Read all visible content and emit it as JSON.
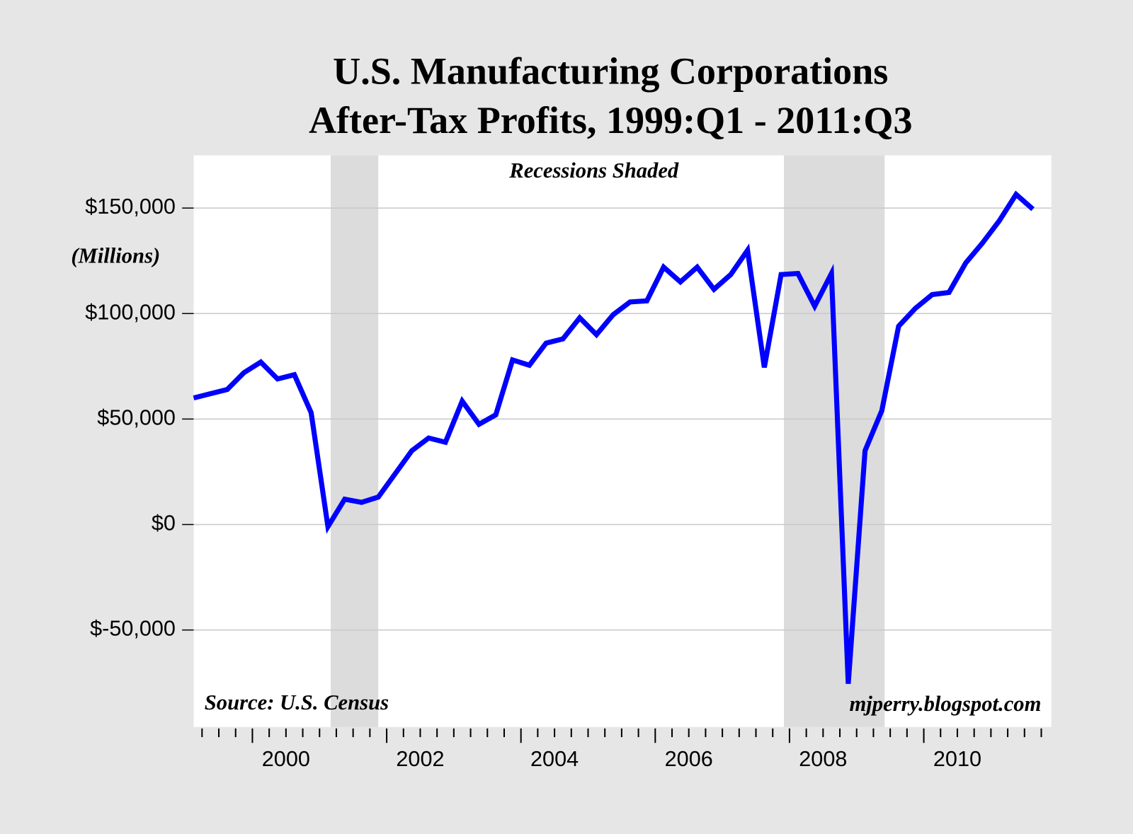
{
  "chart_data": {
    "type": "line",
    "title": [
      "U.S. Manufacturing Corporations",
      "After-Tax Profits, 1999:Q1 - 2011:Q3"
    ],
    "annotation": "Recessions Shaded",
    "ylabel": "(Millions)",
    "source": "Source: U.S. Census",
    "credit": "mjperry.blogspot.com",
    "x": [
      1999.125,
      1999.375,
      1999.625,
      1999.875,
      2000.125,
      2000.375,
      2000.625,
      2000.875,
      2001.125,
      2001.375,
      2001.625,
      2001.875,
      2002.125,
      2002.375,
      2002.625,
      2002.875,
      2003.125,
      2003.375,
      2003.625,
      2003.875,
      2004.125,
      2004.375,
      2004.625,
      2004.875,
      2005.125,
      2005.375,
      2005.625,
      2005.875,
      2006.125,
      2006.375,
      2006.625,
      2006.875,
      2007.125,
      2007.375,
      2007.625,
      2007.875,
      2008.125,
      2008.375,
      2008.625,
      2008.875,
      2009.125,
      2009.375,
      2009.625,
      2009.875,
      2010.125,
      2010.375,
      2010.625,
      2010.875,
      2011.125,
      2011.375,
      2011.625
    ],
    "series": [
      {
        "name": "After-Tax Profits",
        "color": "#0000ff",
        "values": [
          60000,
          62000,
          64000,
          72000,
          77000,
          69000,
          71000,
          53000,
          -1000,
          12000,
          10500,
          13000,
          24000,
          35000,
          41000,
          39000,
          58500,
          47500,
          52000,
          78000,
          75500,
          86000,
          88000,
          98000,
          90000,
          99500,
          105500,
          106000,
          122000,
          115000,
          122000,
          111500,
          118500,
          130000,
          74500,
          118500,
          119000,
          103500,
          119000,
          -75500,
          35000,
          54000,
          94000,
          102500,
          109000,
          110000,
          124000,
          133500,
          144000,
          156500,
          149500
        ]
      }
    ],
    "recessions": [
      [
        2001.167,
        2001.875
      ],
      [
        2007.917,
        2009.417
      ]
    ],
    "recession_color": "#dcdcdc",
    "xlim": [
      1999.125,
      2011.9
    ],
    "xticks": [
      {
        "value": 2000.5,
        "label": "2000"
      },
      {
        "value": 2002.5,
        "label": "2002"
      },
      {
        "value": 2004.5,
        "label": "2004"
      },
      {
        "value": 2006.5,
        "label": "2006"
      },
      {
        "value": 2008.5,
        "label": "2008"
      },
      {
        "value": 2010.5,
        "label": "2010"
      }
    ],
    "xticks_major": [
      2000,
      2002,
      2004,
      2006,
      2008,
      2010
    ],
    "xticks_minor": [
      1999.25,
      1999.5,
      1999.75,
      2000.25,
      2000.5,
      2000.75,
      2001,
      2001.25,
      2001.5,
      2001.75,
      2002.25,
      2002.5,
      2002.75,
      2003,
      2003.25,
      2003.5,
      2003.75,
      2004.25,
      2004.5,
      2004.75,
      2005,
      2005.25,
      2005.5,
      2005.75,
      2006.25,
      2006.5,
      2006.75,
      2007,
      2007.25,
      2007.5,
      2007.75,
      2008.25,
      2008.5,
      2008.75,
      2009,
      2009.25,
      2009.5,
      2009.75,
      2010.25,
      2010.5,
      2010.75,
      2011,
      2011.25,
      2011.5,
      2011.75
    ],
    "ylim": [
      -96000,
      175000
    ],
    "yticks": [
      {
        "value": -50000,
        "label": "$-50,000"
      },
      {
        "value": 0,
        "label": "$0"
      },
      {
        "value": 50000,
        "label": "$50,000"
      },
      {
        "value": 100000,
        "label": "$100,000"
      },
      {
        "value": 150000,
        "label": "$150,000"
      }
    ],
    "grid": true
  }
}
